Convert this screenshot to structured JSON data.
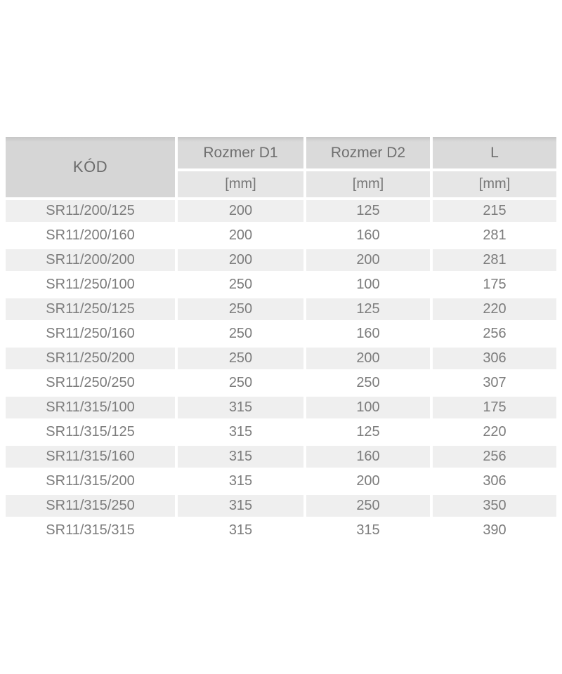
{
  "page": {
    "background": "#ffffff"
  },
  "colors": {
    "header_bg": "#d9d9d9",
    "header_top_edge": "#c6c6c6",
    "subheader_bg": "#e6e6e6",
    "row_stripe_bg": "#efefef",
    "row_plain_bg": "#ffffff",
    "text_gray": "#7c7c7c"
  },
  "table": {
    "columns": [
      {
        "key": "kod",
        "label": "KÓD",
        "unit": ""
      },
      {
        "key": "d1",
        "label": "Rozmer D1",
        "unit": "[mm]"
      },
      {
        "key": "d2",
        "label": "Rozmer D2",
        "unit": "[mm]"
      },
      {
        "key": "l",
        "label": "L",
        "unit": "[mm]"
      }
    ],
    "rows": [
      [
        "SR11/200/125",
        "200",
        "125",
        "215"
      ],
      [
        "SR11/200/160",
        "200",
        "160",
        "281"
      ],
      [
        "SR11/200/200",
        "200",
        "200",
        "281"
      ],
      [
        "SR11/250/100",
        "250",
        "100",
        "175"
      ],
      [
        "SR11/250/125",
        "250",
        "125",
        "220"
      ],
      [
        "SR11/250/160",
        "250",
        "160",
        "256"
      ],
      [
        "SR11/250/200",
        "250",
        "200",
        "306"
      ],
      [
        "SR11/250/250",
        "250",
        "250",
        "307"
      ],
      [
        "SR11/315/100",
        "315",
        "100",
        "175"
      ],
      [
        "SR11/315/125",
        "315",
        "125",
        "220"
      ],
      [
        "SR11/315/160",
        "315",
        "160",
        "256"
      ],
      [
        "SR11/315/200",
        "315",
        "200",
        "306"
      ],
      [
        "SR11/315/250",
        "315",
        "250",
        "350"
      ],
      [
        "SR11/315/315",
        "315",
        "315",
        "390"
      ]
    ]
  }
}
